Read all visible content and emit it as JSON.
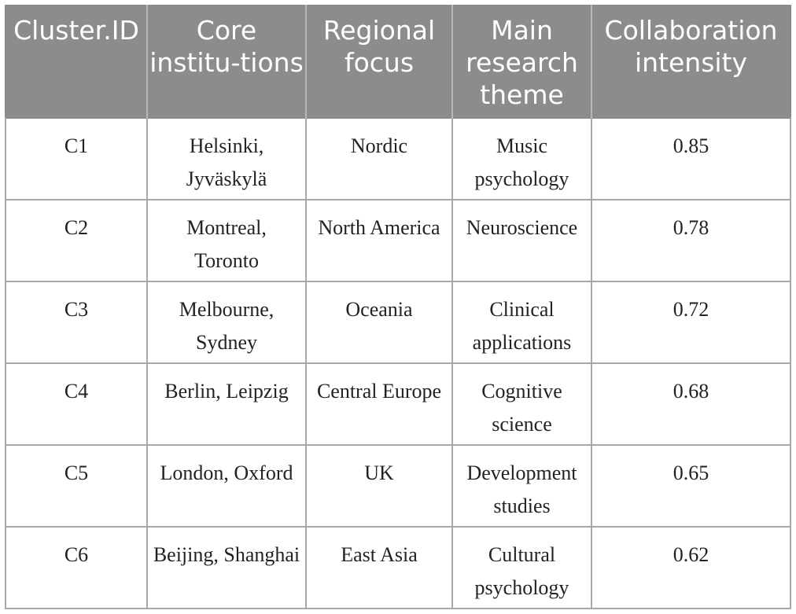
{
  "table": {
    "headers": [
      "Cluster.ID",
      "Core institu-tions",
      "Regional focus",
      "Main research theme",
      "Collaboration intensity"
    ],
    "rows": [
      [
        "C1",
        "Helsinki, Jyväskylä",
        "Nordic",
        "Music psychology",
        "0.85"
      ],
      [
        "C2",
        "Montreal, Toronto",
        "North America",
        "Neuroscience",
        "0.78"
      ],
      [
        "C3",
        "Melbourne, Sydney",
        "Oceania",
        "Clinical applications",
        "0.72"
      ],
      [
        "C4",
        "Berlin, Leipzig",
        "Central Europe",
        "Cognitive science",
        "0.68"
      ],
      [
        "C5",
        "London, Oxford",
        "UK",
        "Development studies",
        "0.65"
      ],
      [
        "C6",
        "Beijing, Shanghai",
        "East Asia",
        "Cultural psychology",
        "0.62"
      ]
    ]
  }
}
